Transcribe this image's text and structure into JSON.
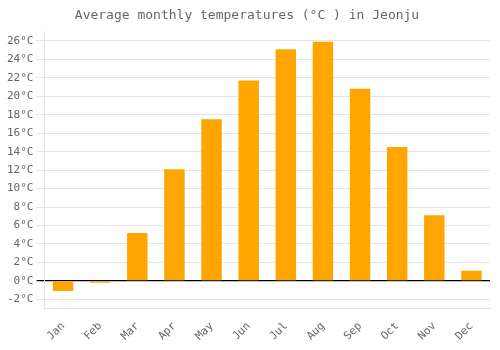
{
  "chart_data": {
    "type": "bar",
    "title": "Average monthly temperatures (°C ) in Jeonju",
    "categories": [
      "Jan",
      "Feb",
      "Mar",
      "Apr",
      "May",
      "Jun",
      "Jul",
      "Aug",
      "Sep",
      "Oct",
      "Nov",
      "Dec"
    ],
    "values": [
      -1.1,
      -0.2,
      5.2,
      12.1,
      17.5,
      21.7,
      25.1,
      25.9,
      20.8,
      14.5,
      7.1,
      1.1
    ],
    "color": "#FFA500",
    "ylim": [
      -3,
      27
    ],
    "yticks": [
      {
        "value": -2,
        "label": "-2°C"
      },
      {
        "value": 0,
        "label": "0°C"
      },
      {
        "value": 2,
        "label": "2°C"
      },
      {
        "value": 4,
        "label": "4°C"
      },
      {
        "value": 6,
        "label": "6°C"
      },
      {
        "value": 8,
        "label": "8°C"
      },
      {
        "value": 10,
        "label": "10°C"
      },
      {
        "value": 12,
        "label": "12°C"
      },
      {
        "value": 14,
        "label": "14°C"
      },
      {
        "value": 16,
        "label": "16°C"
      },
      {
        "value": 18,
        "label": "18°C"
      },
      {
        "value": 20,
        "label": "20°C"
      },
      {
        "value": 22,
        "label": "22°C"
      },
      {
        "value": 24,
        "label": "24°C"
      },
      {
        "value": 26,
        "label": "26°C"
      }
    ],
    "grid": true
  }
}
